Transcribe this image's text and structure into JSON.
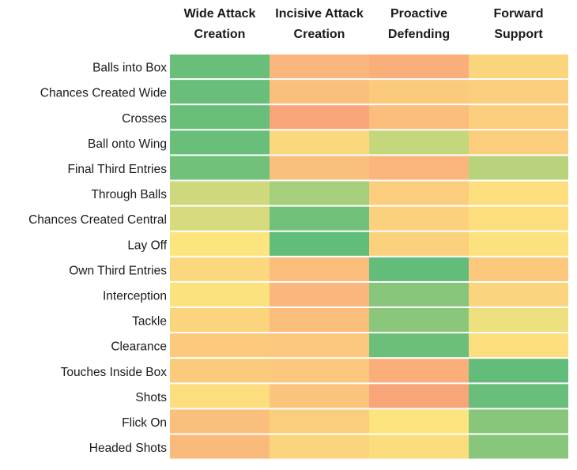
{
  "chart_data": {
    "type": "heatmap",
    "title": "",
    "columns": [
      [
        "Wide Attack",
        "Creation"
      ],
      [
        "Incisive Attack",
        "Creation"
      ],
      [
        "Proactive",
        "Defending"
      ],
      [
        "Forward",
        "Support"
      ]
    ],
    "rows": [
      "Balls into Box",
      "Chances Created Wide",
      "Crosses",
      "Ball onto Wing",
      "Final Third Entries",
      "Through Balls",
      "Chances Created Central",
      "Lay Off",
      "Own Third Entries",
      "Interception",
      "Tackle",
      "Clearance",
      "Touches Inside Box",
      "Shots",
      "Flick On",
      "Headed Shots"
    ],
    "scale": {
      "min": 0,
      "max": 1,
      "low_color": "#f9a27a",
      "mid_color": "#fce57f",
      "high_color": "#63bd7a"
    },
    "values": [
      [
        0.98,
        0.15,
        0.1,
        0.38
      ],
      [
        0.98,
        0.22,
        0.3,
        0.33
      ],
      [
        0.98,
        0.02,
        0.2,
        0.33
      ],
      [
        0.98,
        0.4,
        0.68,
        0.33
      ],
      [
        0.95,
        0.22,
        0.15,
        0.72
      ],
      [
        0.65,
        0.78,
        0.32,
        0.45
      ],
      [
        0.62,
        0.95,
        0.35,
        0.45
      ],
      [
        0.5,
        1.0,
        0.35,
        0.47
      ],
      [
        0.4,
        0.2,
        1.0,
        0.28
      ],
      [
        0.47,
        0.15,
        0.88,
        0.38
      ],
      [
        0.38,
        0.2,
        0.87,
        0.55
      ],
      [
        0.3,
        0.28,
        0.97,
        0.45
      ],
      [
        0.3,
        0.28,
        0.1,
        1.0
      ],
      [
        0.45,
        0.25,
        0.02,
        0.98
      ],
      [
        0.22,
        0.33,
        0.5,
        0.88
      ],
      [
        0.18,
        0.37,
        0.44,
        0.88
      ]
    ]
  }
}
